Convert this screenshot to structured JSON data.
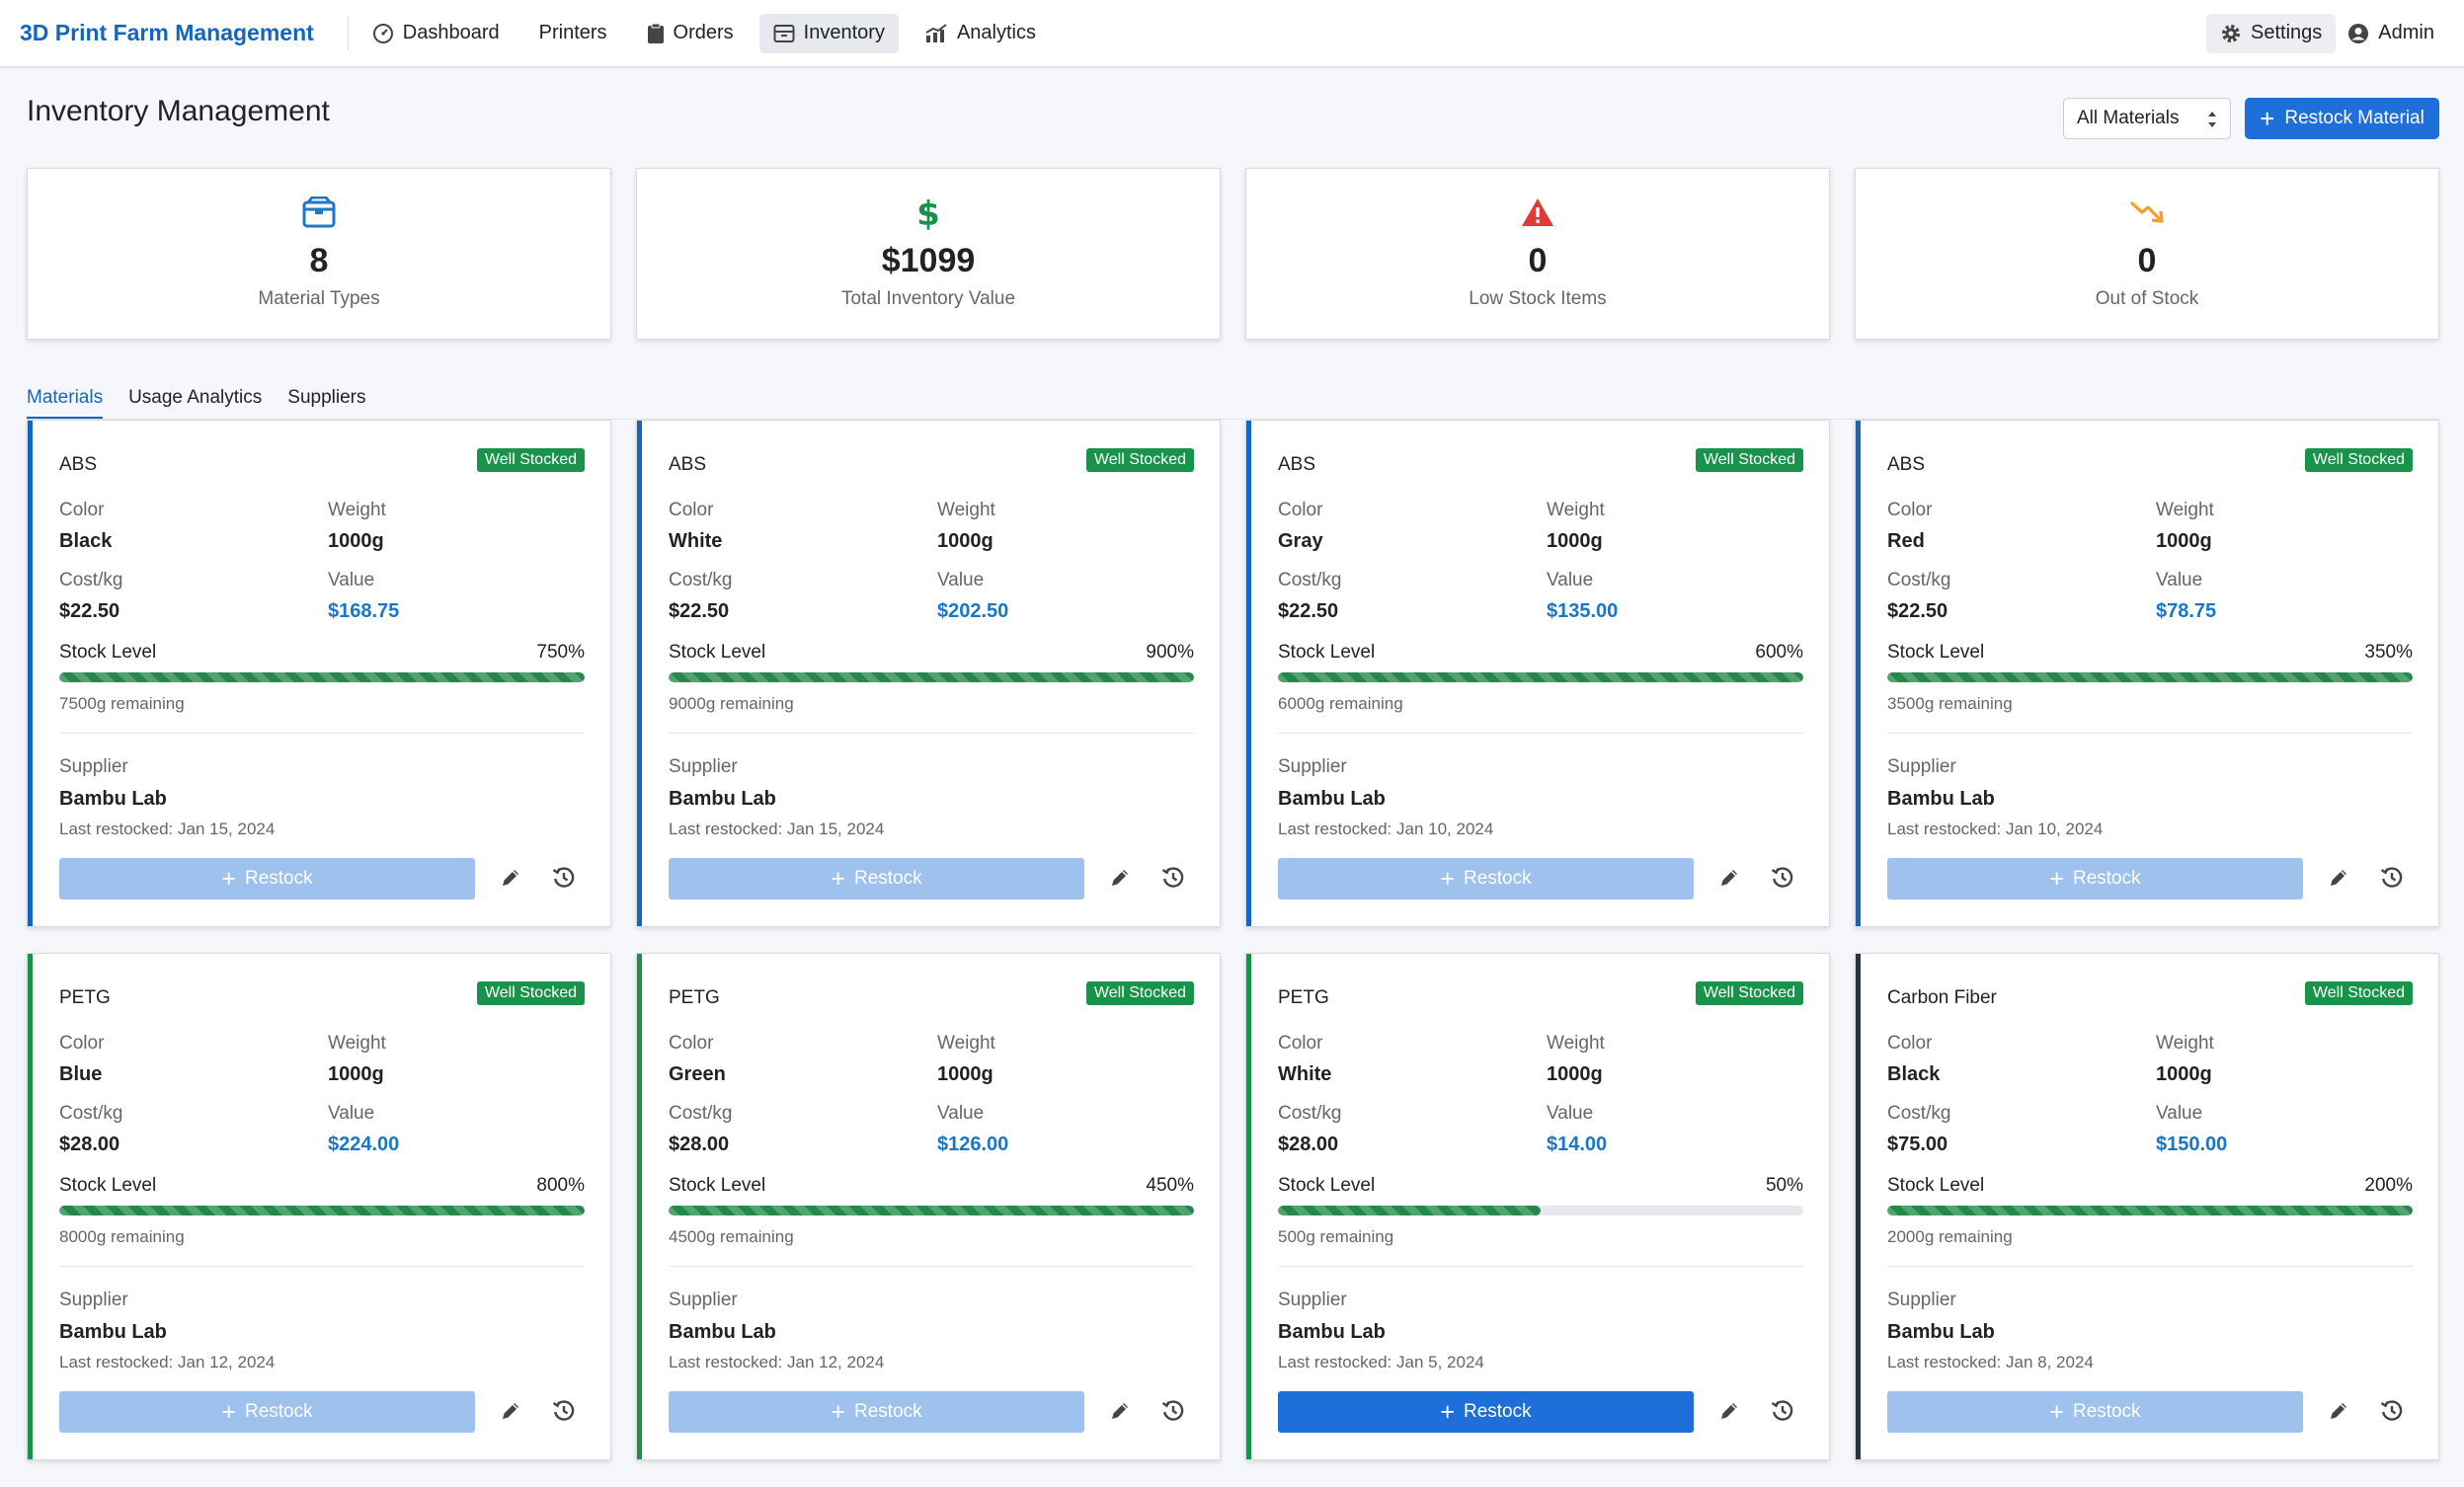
{
  "app": {
    "title": "3D Print Farm Management",
    "nav": [
      {
        "label": "Dashboard",
        "icon": "dashboard-icon",
        "active": false
      },
      {
        "label": "Printers",
        "icon": "",
        "active": false
      },
      {
        "label": "Orders",
        "icon": "clipboard-icon",
        "active": false
      },
      {
        "label": "Inventory",
        "icon": "inventory-box-icon",
        "active": true
      },
      {
        "label": "Analytics",
        "icon": "analytics-chart-icon",
        "active": false
      }
    ],
    "settings_label": "Settings",
    "admin_label": "Admin"
  },
  "header": {
    "title": "Inventory Management",
    "filter_value": "All Materials",
    "restock_label": "Restock Material"
  },
  "stats": [
    {
      "value": "8",
      "label": "Material Types",
      "icon": "box-icon",
      "color": "#1e78c8"
    },
    {
      "value": "$1099",
      "label": "Total Inventory Value",
      "icon": "dollar-icon",
      "color": "#19934a"
    },
    {
      "value": "0",
      "label": "Low Stock Items",
      "icon": "warning-icon",
      "color": "#e53935"
    },
    {
      "value": "0",
      "label": "Out of Stock",
      "icon": "trend-down-icon",
      "color": "#f59e2b"
    }
  ],
  "tabs": [
    {
      "label": "Materials",
      "active": true
    },
    {
      "label": "Usage Analytics",
      "active": false
    },
    {
      "label": "Suppliers",
      "active": false
    }
  ],
  "labels": {
    "color": "Color",
    "weight": "Weight",
    "cost": "Cost/kg",
    "value": "Value",
    "stock_level": "Stock Level",
    "supplier": "Supplier",
    "restock": "Restock"
  },
  "materials": [
    {
      "name": "ABS",
      "status": "Well Stocked",
      "color": "Black",
      "weight": "1000g",
      "cost": "$22.50",
      "value": "$168.75",
      "stock_pct": "750%",
      "fill": 1.0,
      "remaining": "7500g remaining",
      "supplier": "Bambu Lab",
      "last_restocked": "Last restocked: Jan 15, 2024",
      "accent": "#1565c0",
      "restock_enabled": false
    },
    {
      "name": "ABS",
      "status": "Well Stocked",
      "color": "White",
      "weight": "1000g",
      "cost": "$22.50",
      "value": "$202.50",
      "stock_pct": "900%",
      "fill": 1.0,
      "remaining": "9000g remaining",
      "supplier": "Bambu Lab",
      "last_restocked": "Last restocked: Jan 15, 2024",
      "accent": "#1565c0",
      "restock_enabled": false
    },
    {
      "name": "ABS",
      "status": "Well Stocked",
      "color": "Gray",
      "weight": "1000g",
      "cost": "$22.50",
      "value": "$135.00",
      "stock_pct": "600%",
      "fill": 1.0,
      "remaining": "6000g remaining",
      "supplier": "Bambu Lab",
      "last_restocked": "Last restocked: Jan 10, 2024",
      "accent": "#1565c0",
      "restock_enabled": false
    },
    {
      "name": "ABS",
      "status": "Well Stocked",
      "color": "Red",
      "weight": "1000g",
      "cost": "$22.50",
      "value": "$78.75",
      "stock_pct": "350%",
      "fill": 1.0,
      "remaining": "3500g remaining",
      "supplier": "Bambu Lab",
      "last_restocked": "Last restocked: Jan 10, 2024",
      "accent": "#1565c0",
      "restock_enabled": false
    },
    {
      "name": "PETG",
      "status": "Well Stocked",
      "color": "Blue",
      "weight": "1000g",
      "cost": "$28.00",
      "value": "$224.00",
      "stock_pct": "800%",
      "fill": 1.0,
      "remaining": "8000g remaining",
      "supplier": "Bambu Lab",
      "last_restocked": "Last restocked: Jan 12, 2024",
      "accent": "#19934a",
      "restock_enabled": false
    },
    {
      "name": "PETG",
      "status": "Well Stocked",
      "color": "Green",
      "weight": "1000g",
      "cost": "$28.00",
      "value": "$126.00",
      "stock_pct": "450%",
      "fill": 1.0,
      "remaining": "4500g remaining",
      "supplier": "Bambu Lab",
      "last_restocked": "Last restocked: Jan 12, 2024",
      "accent": "#19934a",
      "restock_enabled": false
    },
    {
      "name": "PETG",
      "status": "Well Stocked",
      "color": "White",
      "weight": "1000g",
      "cost": "$28.00",
      "value": "$14.00",
      "stock_pct": "50%",
      "fill": 0.5,
      "remaining": "500g remaining",
      "supplier": "Bambu Lab",
      "last_restocked": "Last restocked: Jan 5, 2024",
      "accent": "#19934a",
      "restock_enabled": true
    },
    {
      "name": "Carbon Fiber",
      "status": "Well Stocked",
      "color": "Black",
      "weight": "1000g",
      "cost": "$75.00",
      "value": "$150.00",
      "stock_pct": "200%",
      "fill": 1.0,
      "remaining": "2000g remaining",
      "supplier": "Bambu Lab",
      "last_restocked": "Last restocked: Jan 8, 2024",
      "accent": "#2b3340",
      "restock_enabled": false
    }
  ]
}
